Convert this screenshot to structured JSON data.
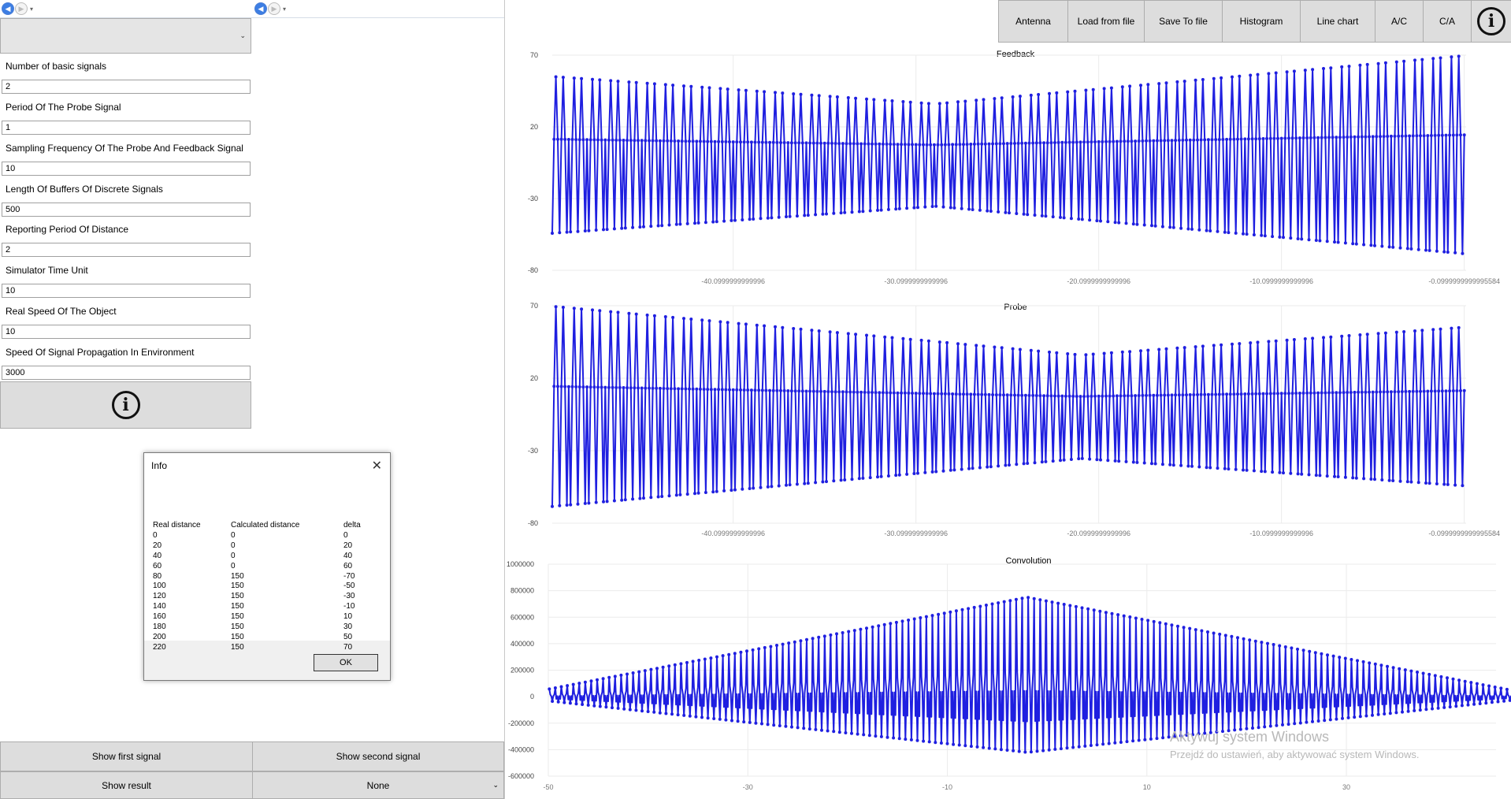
{
  "left": {
    "combo_value": "",
    "params": [
      {
        "label": "Number of basic signals",
        "value": "2"
      },
      {
        "label": "Period Of The Probe Signal",
        "value": "1"
      },
      {
        "label": "Sampling Frequency Of The Probe And Feedback Signal",
        "value": "10"
      },
      {
        "label": "Length Of Buffers Of Discrete Signals",
        "value": "500"
      },
      {
        "label": "Reporting Period Of Distance",
        "value": "2"
      },
      {
        "label": "Simulator Time Unit",
        "value": "10"
      },
      {
        "label": "Real Speed Of The Object",
        "value": "10"
      },
      {
        "label": "Speed Of Signal Propagation In Environment",
        "value": "3000"
      }
    ],
    "info_icon": "info-icon",
    "buttons": {
      "show_first": "Show first signal",
      "show_second": "Show second signal",
      "show_result": "Show result",
      "select_value": "None"
    }
  },
  "dialog": {
    "title": "Info",
    "close": "✕",
    "headers": [
      "Real distance",
      "Calculated distance",
      "delta"
    ],
    "rows": [
      [
        "0",
        "0",
        "0"
      ],
      [
        "20",
        "0",
        "20"
      ],
      [
        "40",
        "0",
        "40"
      ],
      [
        "60",
        "0",
        "60"
      ],
      [
        "80",
        "150",
        "-70"
      ],
      [
        "100",
        "150",
        "-50"
      ],
      [
        "120",
        "150",
        "-30"
      ],
      [
        "140",
        "150",
        "-10"
      ],
      [
        "160",
        "150",
        "10"
      ],
      [
        "180",
        "150",
        "30"
      ],
      [
        "200",
        "150",
        "50"
      ],
      [
        "220",
        "150",
        "70"
      ]
    ],
    "ok": "OK"
  },
  "toolbar": {
    "tabs": [
      "Antenna",
      "Load from file",
      "Save To file",
      "Histogram",
      "Line chart",
      "A/C",
      "C/A"
    ],
    "info_icon": "info-icon"
  },
  "watermark": {
    "line1": "Aktywuj system Windows",
    "line2": "Przejdź do ustawień, aby aktywować system Windows."
  },
  "chart_data": [
    {
      "type": "line",
      "title": "Feedback",
      "color": "#1f1fe0",
      "ylim": [
        -80,
        70
      ],
      "yticks": [
        70,
        20,
        -30,
        -80
      ],
      "xlim": [
        -50,
        0
      ],
      "xticks": [
        -40.0999999999996,
        -30.0999999999996,
        -20.0999999999996,
        -10.0999999999996,
        -0.0999999999995584
      ],
      "xticklabels": [
        "-40.0999999999996",
        "-30.0999999999996",
        "-20.0999999999996",
        "-10.0999999999996",
        "-0.0999999999995584"
      ],
      "signal": {
        "n": 500,
        "x_start": -50,
        "x_step": 0.1,
        "period": 10,
        "pattern": [
          -57,
          12,
          58,
          12,
          -57,
          12,
          58,
          12,
          -57,
          12
        ],
        "amp_start": 0.95,
        "amp_mid": 0.62,
        "amp_end": 1.2,
        "mid_pos": 0.42
      },
      "grid": true
    },
    {
      "type": "line",
      "title": "Probe",
      "color": "#1f1fe0",
      "ylim": [
        -80,
        70
      ],
      "yticks": [
        70,
        20,
        -30,
        -80
      ],
      "xlim": [
        -50,
        0
      ],
      "xticks": [
        -40.0999999999996,
        -30.0999999999996,
        -20.0999999999996,
        -10.0999999999996,
        -0.0999999999995584
      ],
      "xticklabels": [
        "-40.0999999999996",
        "-30.0999999999996",
        "-20.0999999999996",
        "-10.0999999999996",
        "-0.0999999999995584"
      ],
      "signal": {
        "n": 500,
        "x_start": -50,
        "x_step": 0.1,
        "period": 10,
        "pattern": [
          -57,
          12,
          58,
          12,
          -57,
          12,
          58,
          12,
          -57,
          12
        ],
        "amp_start": 1.2,
        "amp_mid": 0.62,
        "amp_end": 0.95,
        "mid_pos": 0.58
      },
      "grid": true
    },
    {
      "type": "line",
      "title": "Convolution",
      "color": "#1f1fe0",
      "ylim": [
        -600000,
        1000000
      ],
      "yticks": [
        1000000,
        800000,
        600000,
        400000,
        200000,
        0,
        -200000,
        -400000,
        -600000
      ],
      "yticklabels": [
        "1000000",
        "800000",
        "600000",
        "400000",
        "200000",
        "0",
        "-200000",
        "-400000",
        "-600000"
      ],
      "xlim": [
        -50,
        45
      ],
      "xticks": [
        -50,
        -30,
        -10,
        10,
        30
      ],
      "xticklabels": [
        "-50",
        "-30",
        "-10",
        "10",
        "30"
      ],
      "signal": {
        "n": 999,
        "x_start": -49.9,
        "x_step": 0.1,
        "peak_pos": 0.48,
        "peak_high": 750000,
        "peak_low": -420000
      },
      "grid": true
    }
  ]
}
